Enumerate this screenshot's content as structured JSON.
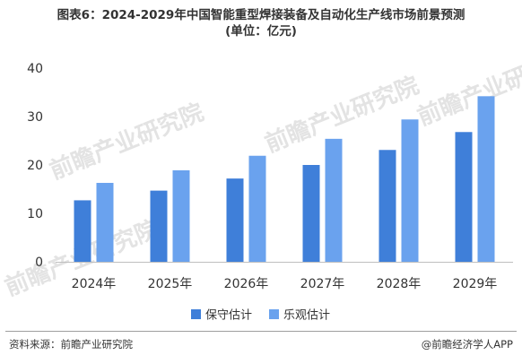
{
  "header": {
    "title": "图表6：2024-2029年中国智能重型焊接装备及自动化生产线市场前景预测",
    "subtitle": "(单位：亿元)"
  },
  "chart_data": {
    "type": "bar",
    "categories": [
      "2024年",
      "2025年",
      "2026年",
      "2027年",
      "2028年",
      "2029年"
    ],
    "series": [
      {
        "name": "保守估计",
        "values": [
          12.7,
          14.7,
          17.2,
          20.0,
          23.1,
          26.8
        ],
        "color": "#3f7fd9"
      },
      {
        "name": "乐观估计",
        "values": [
          16.3,
          18.9,
          21.9,
          25.4,
          29.4,
          34.2
        ],
        "color": "#6aa2ee"
      }
    ],
    "ylim": [
      0,
      40
    ],
    "yticks": [
      0,
      10,
      20,
      30,
      40
    ],
    "grid": false,
    "legend": "bottom-center",
    "watermark": "前瞻产业研究院"
  },
  "footer": {
    "source": "资料来源：前瞻产业研究院",
    "brand": "@前瞻经济学人APP"
  }
}
